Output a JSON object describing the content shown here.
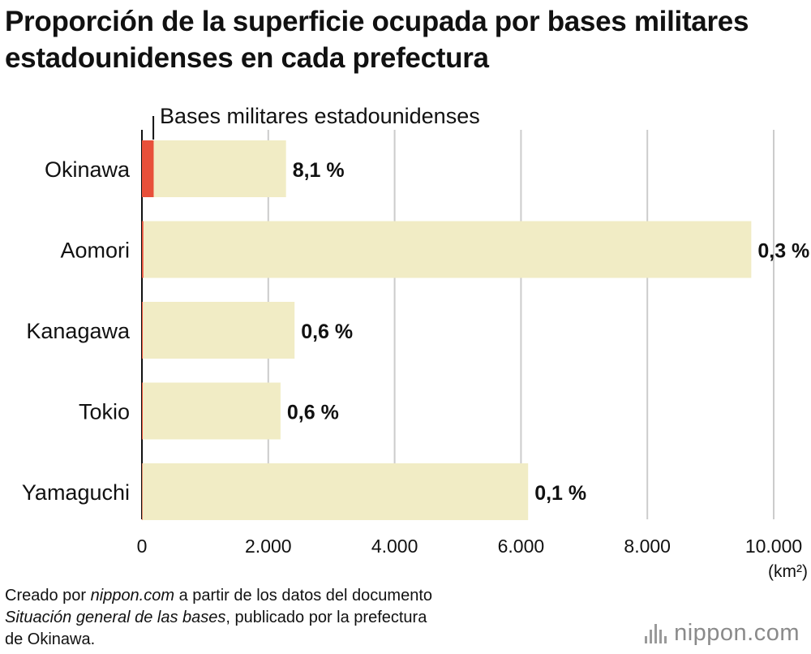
{
  "title": "Proporción de la superficie ocupada por bases militares estadounidenses en cada prefectura",
  "chart_data": {
    "type": "bar",
    "orientation": "horizontal",
    "stacked": true,
    "categories": [
      "Okinawa",
      "Aomori",
      "Kanagawa",
      "Tokio",
      "Yamaguchi"
    ],
    "series": [
      {
        "name": "Bases militares estadounidenses",
        "color": "#e8503a",
        "values": [
          186,
          24,
          15,
          13,
          8
        ]
      },
      {
        "color": "#f1ecc5",
        "values": [
          2095,
          9621,
          2401,
          2181,
          6105
        ]
      }
    ],
    "totals": [
      2281,
      9645,
      2416,
      2194,
      6113
    ],
    "data_labels": [
      "8,1 %",
      "0,3 %",
      "0,6 %",
      "0,6 %",
      "0,1 %"
    ],
    "xlim": [
      0,
      10000
    ],
    "xticks": [
      0,
      2000,
      4000,
      6000,
      8000,
      10000
    ],
    "xtick_labels": [
      "0",
      "2.000",
      "4.000",
      "6.000",
      "8.000",
      "10.000"
    ],
    "xunit": "(km²)",
    "annotation": "Bases militares estadounidenses",
    "grid": true,
    "gridline_color": "#cccccc"
  },
  "note": {
    "line1_a": "Creado por ",
    "line1_b": "nippon.com",
    "line1_c": " a partir de los datos del documento",
    "line2_a": "Situación general de las bases",
    "line2_b": ", publicado por la prefectura",
    "line3": "de Okinawa."
  },
  "logo": {
    "text": "nippon.com"
  }
}
